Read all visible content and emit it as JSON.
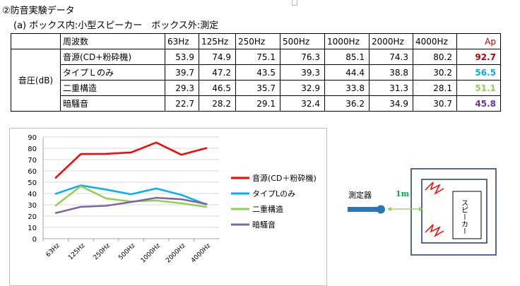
{
  "heading": {
    "main": "②防音実験データ",
    "sub": "(a) ボックス内:小型スピーカー　ボックス外:測定"
  },
  "table": {
    "frequency_header": "周波数",
    "row_group_label": "音圧(dB)",
    "ap_header": "Ap",
    "columns": [
      "63Hz",
      "125Hz",
      "250Hz",
      "500Hz",
      "1000Hz",
      "2000Hz",
      "4000Hz"
    ],
    "rows": [
      {
        "label": "音源(CD+粉砕機)",
        "values": [
          "53.9",
          "74.9",
          "75.1",
          "76.3",
          "85.1",
          "74.3",
          "80.2"
        ],
        "ap": "92.7",
        "ap_color": "#c00000"
      },
      {
        "label": "タイプＬのみ",
        "values": [
          "39.7",
          "47.2",
          "43.5",
          "39.3",
          "44.4",
          "38.8",
          "30.2"
        ],
        "ap": "56.5",
        "ap_color": "#00b0f0"
      },
      {
        "label": "二重構造",
        "values": [
          "29.3",
          "46.5",
          "35.7",
          "32.9",
          "33.8",
          "31.3",
          "28.1"
        ],
        "ap": "51.1",
        "ap_color": "#92d050"
      },
      {
        "label": "暗騒音",
        "values": [
          "22.7",
          "28.2",
          "29.1",
          "32.4",
          "36.2",
          "34.9",
          "30.7"
        ],
        "ap": "45.8",
        "ap_color": "#7030a0"
      }
    ]
  },
  "chart_data": {
    "type": "line",
    "categories": [
      "63Hz",
      "125Hz",
      "250Hz",
      "500Hz",
      "1000Hz",
      "2000Hz",
      "4000Hz"
    ],
    "ylim": [
      0,
      90
    ],
    "yticks": [
      "0",
      "10",
      "20",
      "30",
      "40",
      "50",
      "60",
      "70",
      "80",
      "90"
    ],
    "grid": true,
    "legend": "right",
    "series": [
      {
        "name": "音源(CD＋粉砕機)",
        "color": "#ff0000",
        "values": [
          53.9,
          74.9,
          75.1,
          76.3,
          85.1,
          74.3,
          80.2
        ]
      },
      {
        "name": "タイプLのみ",
        "color": "#00b0f0",
        "values": [
          39.7,
          47.2,
          43.5,
          39.3,
          44.4,
          38.8,
          30.2
        ]
      },
      {
        "name": "二重構造",
        "color": "#92d050",
        "values": [
          29.3,
          46.5,
          35.7,
          32.9,
          33.8,
          31.3,
          28.1
        ]
      },
      {
        "name": "暗騒音",
        "color": "#8064a2",
        "values": [
          22.7,
          28.2,
          29.1,
          32.4,
          36.2,
          34.9,
          30.7
        ]
      }
    ]
  },
  "diagram": {
    "sensor_label": "測定器",
    "distance_label": "1m",
    "speaker_label": "スピーカー",
    "colors": {
      "box": "#1f3864",
      "sensor": "#2e75b6",
      "arrow": "#92d050",
      "distance_text": "#00b050",
      "wave": "#ff0000"
    }
  }
}
